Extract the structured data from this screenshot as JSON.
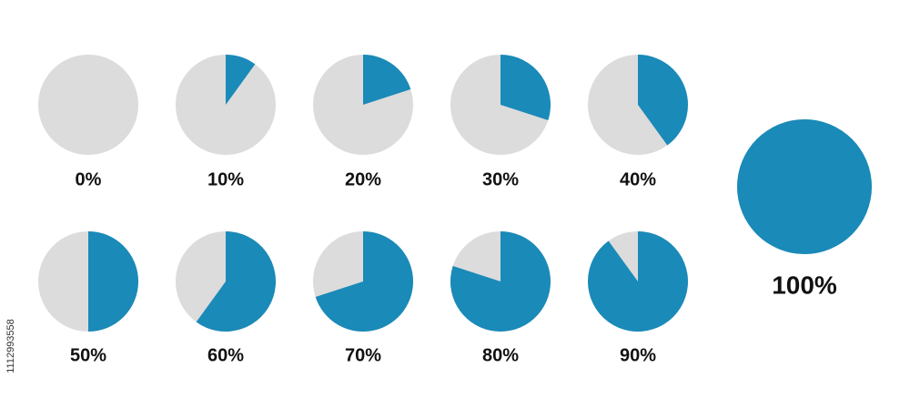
{
  "chart_data": [
    {
      "type": "pie",
      "values": [
        0
      ],
      "value_labels": [
        "0%"
      ],
      "color": "#1a8ab8",
      "track_color": "#dcdcdc"
    },
    {
      "type": "pie",
      "values": [
        10
      ],
      "value_labels": [
        "10%"
      ],
      "color": "#1a8ab8",
      "track_color": "#dcdcdc"
    },
    {
      "type": "pie",
      "values": [
        20
      ],
      "value_labels": [
        "20%"
      ],
      "color": "#1a8ab8",
      "track_color": "#dcdcdc"
    },
    {
      "type": "pie",
      "values": [
        30
      ],
      "value_labels": [
        "30%"
      ],
      "color": "#1a8ab8",
      "track_color": "#dcdcdc"
    },
    {
      "type": "pie",
      "values": [
        40
      ],
      "value_labels": [
        "40%"
      ],
      "color": "#1a8ab8",
      "track_color": "#dcdcdc"
    },
    {
      "type": "pie",
      "values": [
        50
      ],
      "value_labels": [
        "50%"
      ],
      "color": "#1a8ab8",
      "track_color": "#dcdcdc"
    },
    {
      "type": "pie",
      "values": [
        60
      ],
      "value_labels": [
        "60%"
      ],
      "color": "#1a8ab8",
      "track_color": "#dcdcdc"
    },
    {
      "type": "pie",
      "values": [
        70
      ],
      "value_labels": [
        "70%"
      ],
      "color": "#1a8ab8",
      "track_color": "#dcdcdc"
    },
    {
      "type": "pie",
      "values": [
        80
      ],
      "value_labels": [
        "80%"
      ],
      "color": "#1a8ab8",
      "track_color": "#dcdcdc"
    },
    {
      "type": "pie",
      "values": [
        90
      ],
      "value_labels": [
        "90%"
      ],
      "color": "#1a8ab8",
      "track_color": "#dcdcdc"
    },
    {
      "type": "pie",
      "values": [
        100
      ],
      "value_labels": [
        "100%"
      ],
      "color": "#1a8ab8",
      "track_color": "#dcdcdc"
    }
  ],
  "image_id": "1112993558"
}
